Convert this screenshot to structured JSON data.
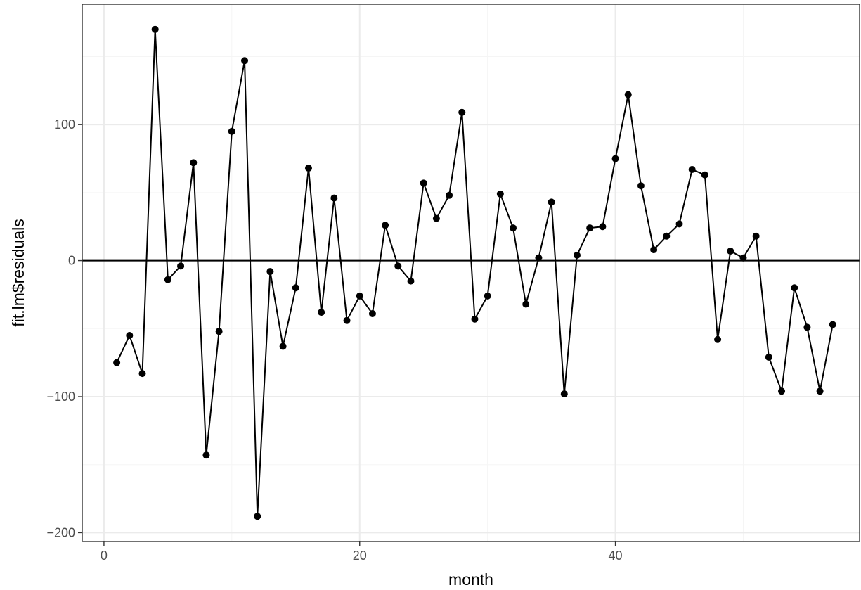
{
  "chart_data": {
    "type": "line",
    "title": "",
    "xlabel": "month",
    "ylabel": "fit.lm$residuals",
    "xlim": [
      -1.7,
      59.1
    ],
    "ylim": [
      -206.5,
      188.5
    ],
    "x_ticks": [
      0,
      20,
      40
    ],
    "y_ticks": [
      -200,
      -100,
      0,
      100
    ],
    "x_tick_labels": [
      "0",
      "20",
      "40"
    ],
    "y_tick_labels": [
      "−200",
      "−100",
      "0",
      "100"
    ],
    "x_minor_gridlines": [
      10,
      30,
      50
    ],
    "y_minor_gridlines": [
      -150,
      -50,
      50,
      150
    ],
    "grid": true,
    "reference_line": {
      "y": 0
    },
    "legend": "none",
    "series": [
      {
        "points": true,
        "x": [
          1,
          2,
          3,
          4,
          5,
          6,
          7,
          8,
          9,
          10,
          11,
          12,
          13,
          14,
          15,
          16,
          17,
          18,
          19,
          20,
          21,
          22,
          23,
          24,
          25,
          26,
          27,
          28,
          29,
          30,
          31,
          32,
          33,
          34,
          35,
          36,
          37,
          38,
          39,
          40,
          41,
          42,
          43,
          44,
          45,
          46,
          47,
          48,
          49,
          50,
          51,
          52,
          53,
          54,
          55,
          56,
          57
        ],
        "values": [
          -75,
          -55,
          -83,
          170,
          -14,
          -4,
          72,
          -143,
          -52,
          95,
          147,
          -188,
          -8,
          -63,
          -20,
          68,
          -38,
          46,
          -44,
          -26,
          -39,
          26,
          -4,
          -15,
          57,
          31,
          48,
          109,
          -43,
          -26,
          49,
          24,
          -32,
          2,
          43,
          -98,
          4,
          24,
          25,
          75,
          122,
          55,
          8,
          18,
          27,
          67,
          63,
          -58,
          7,
          2,
          18,
          -71,
          -96,
          -20,
          -49,
          -96,
          -47
        ]
      }
    ],
    "colors": {
      "line": "#000000",
      "points": "#000000",
      "grid_major": "#ebebeb",
      "grid_minor": "#f5f5f5",
      "panel_border": "#333333",
      "background": "#ffffff"
    }
  }
}
